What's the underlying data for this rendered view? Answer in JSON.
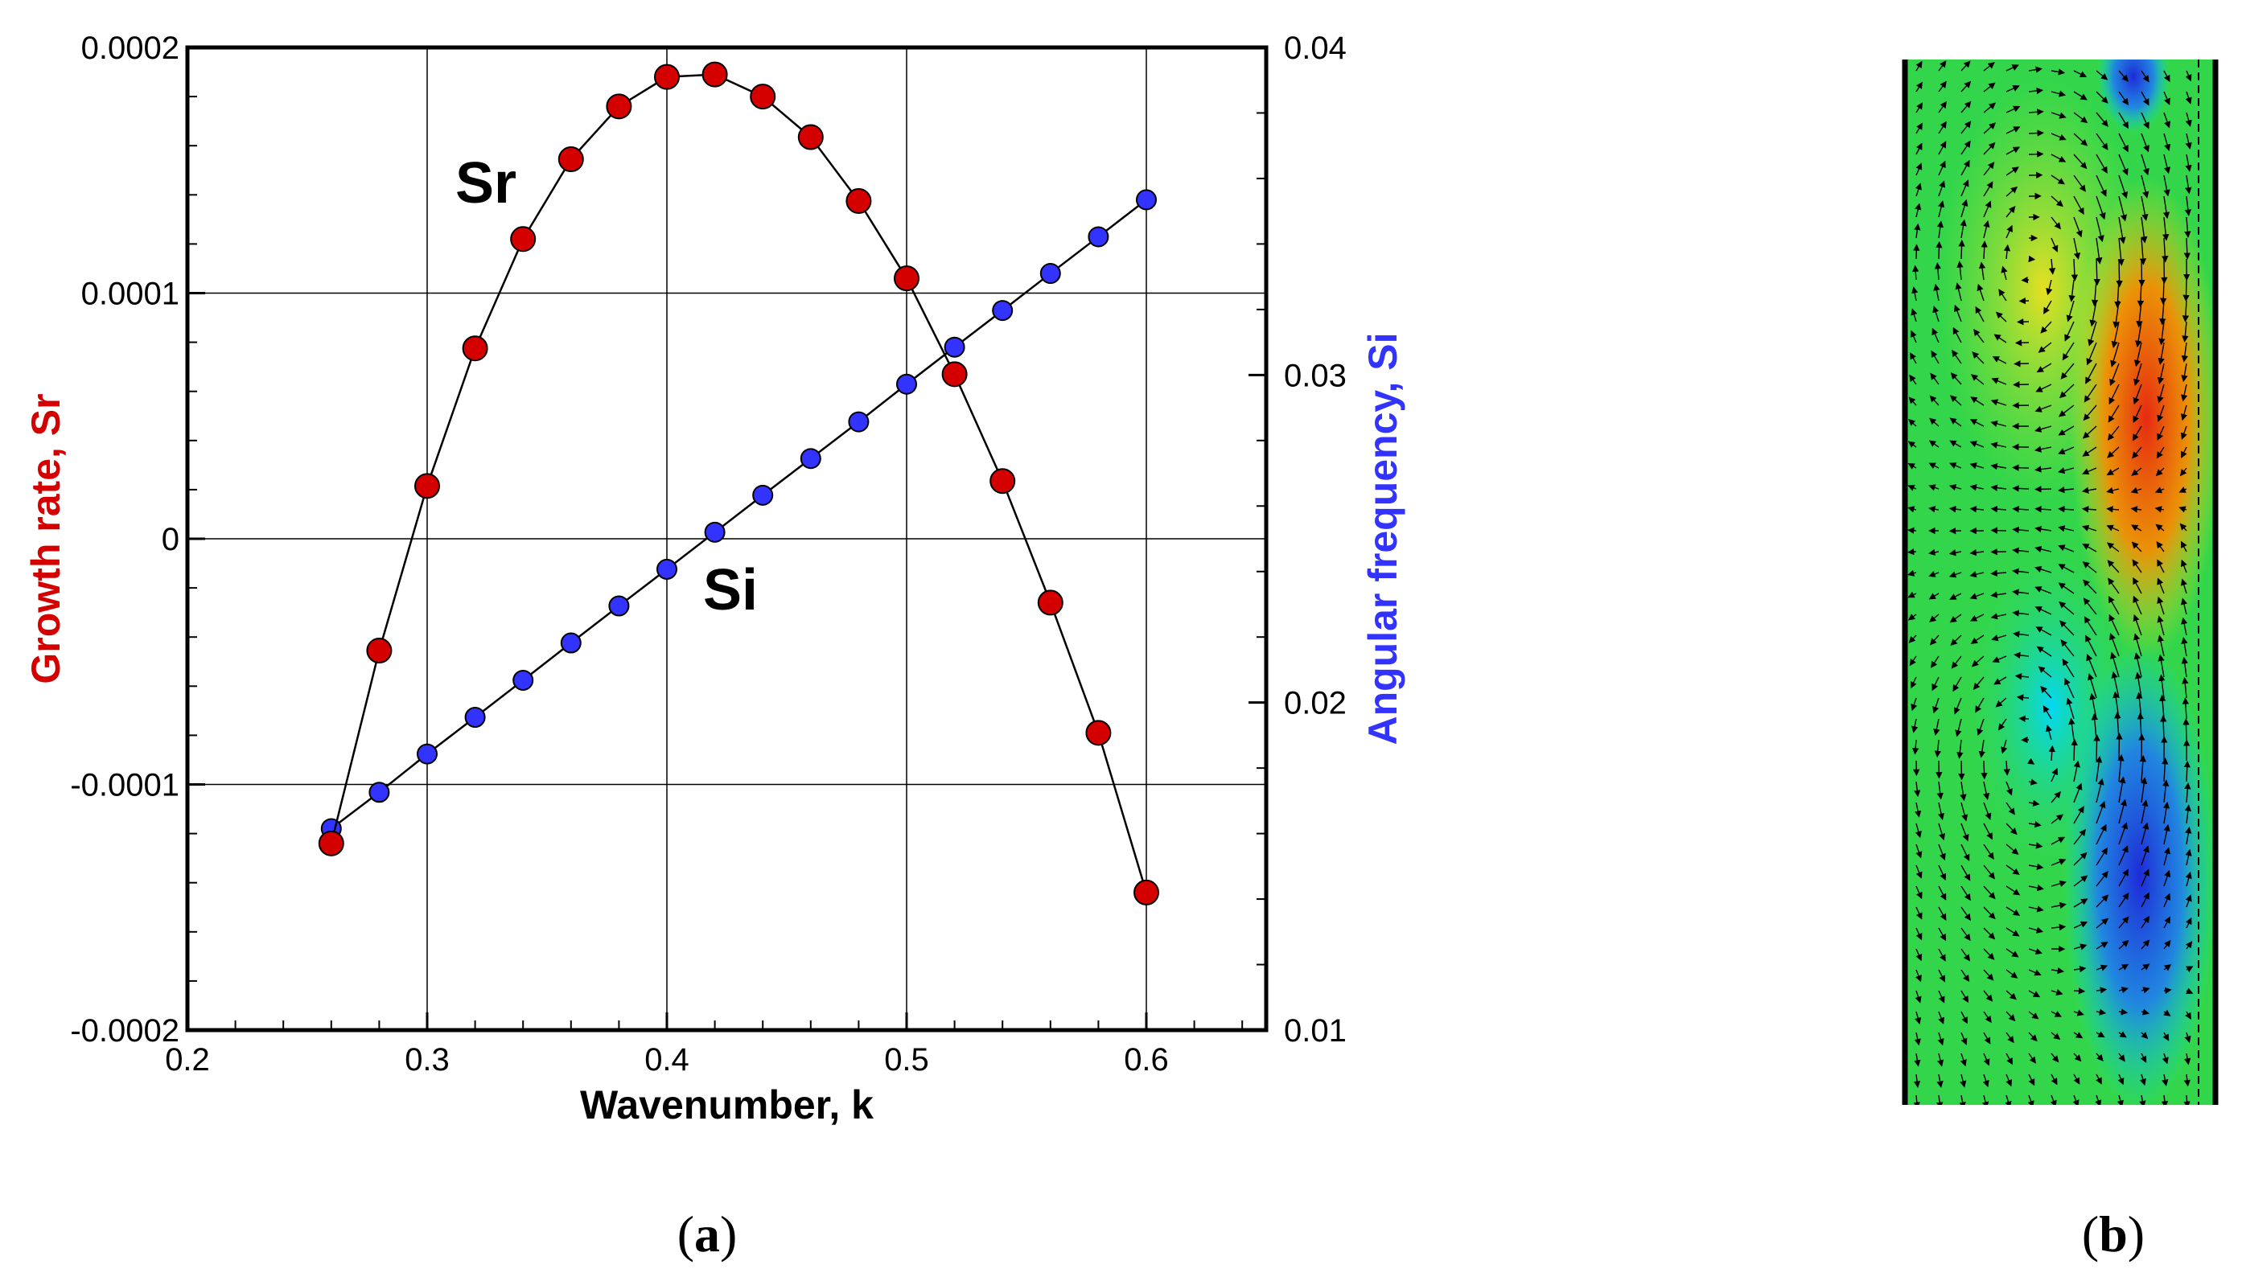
{
  "chart_data": [
    {
      "type": "line",
      "xlabel": "Wavenumber, k",
      "ylabel_left": "Growth rate, Sr",
      "ylabel_right": "Angular frequency, Si",
      "xlim": [
        0.2,
        0.65
      ],
      "ylim_left": [
        -0.0002,
        0.0002
      ],
      "ylim_right": [
        0.01,
        0.04
      ],
      "x_ticks": [
        "0.2",
        "0.3",
        "0.4",
        "0.5",
        "0.6"
      ],
      "y_left_ticks": [
        "-0.0002",
        "-0.0001",
        "0",
        "0.0001",
        "0.0002"
      ],
      "y_right_ticks": [
        "0.01",
        "0.02",
        "0.03",
        "0.04"
      ],
      "grid": true,
      "series": [
        {
          "name": "Sr",
          "axis": "left",
          "color": "#d40000",
          "x": [
            0.26,
            0.28,
            0.3,
            0.32,
            0.34,
            0.36,
            0.38,
            0.4,
            0.42,
            0.44,
            0.46,
            0.48,
            0.5,
            0.52,
            0.54,
            0.56,
            0.58,
            0.6
          ],
          "y": [
            -0.000124,
            -4.55e-05,
            2.15e-05,
            7.75e-05,
            0.000122,
            0.0001545,
            0.000176,
            0.000188,
            0.000189,
            0.00018,
            0.0001635,
            0.0001375,
            0.000106,
            6.7e-05,
            2.35e-05,
            -2.6e-05,
            -7.9e-05,
            -0.000144
          ]
        },
        {
          "name": "Si",
          "axis": "right",
          "color": "#3333ff",
          "x": [
            0.26,
            0.28,
            0.3,
            0.32,
            0.34,
            0.36,
            0.38,
            0.4,
            0.42,
            0.44,
            0.46,
            0.48,
            0.5,
            0.52,
            0.54,
            0.56,
            0.58,
            0.6
          ],
          "y": [
            0.01615,
            0.01726,
            0.01843,
            0.01955,
            0.02068,
            0.02182,
            0.02295,
            0.02407,
            0.0252,
            0.02633,
            0.02745,
            0.02857,
            0.02972,
            0.03085,
            0.03197,
            0.0331,
            0.03422,
            0.03535
          ]
        }
      ],
      "annotations": [
        "Sr",
        "Si"
      ],
      "panel_label": [
        "(",
        "a",
        ")"
      ]
    },
    {
      "type": "heatmap",
      "description_colors": [
        "#1e2bd8",
        "#00d8ff",
        "#33d64a",
        "#f0e020",
        "#e62a10"
      ],
      "panel_label": [
        "(",
        "b",
        ")"
      ]
    }
  ]
}
